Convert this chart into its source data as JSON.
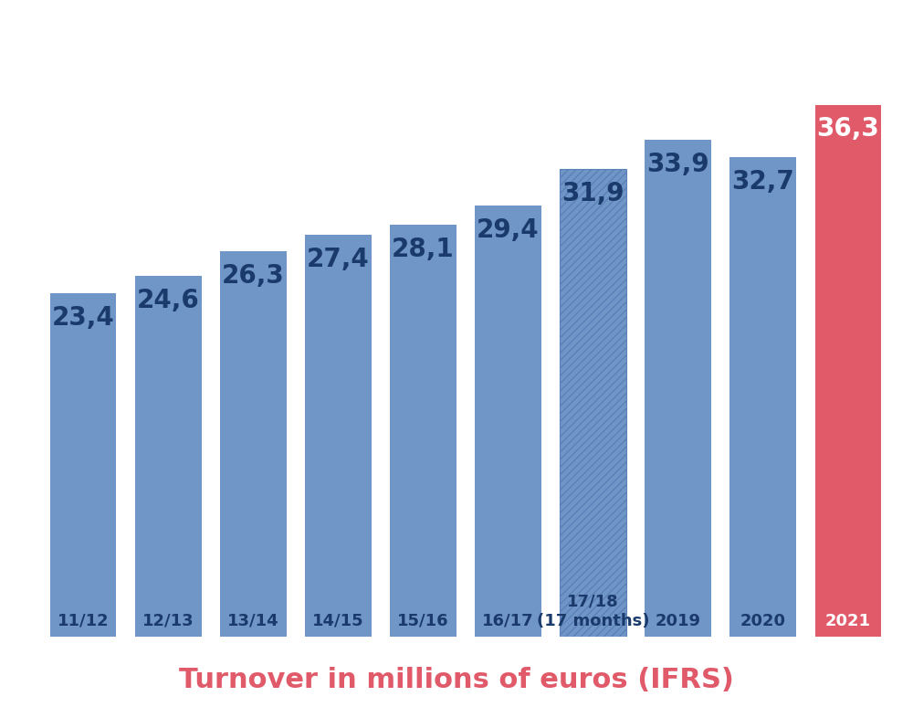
{
  "categories": [
    "11/12",
    "12/13",
    "13/14",
    "14/15",
    "15/16",
    "16/17",
    "17/18\n(17 months)",
    "2019",
    "2020",
    "2021"
  ],
  "values": [
    23.4,
    24.6,
    26.3,
    27.4,
    28.1,
    29.4,
    31.9,
    33.9,
    32.7,
    36.3
  ],
  "bar_colors": [
    "#7096c8",
    "#7096c8",
    "#7096c8",
    "#7096c8",
    "#7096c8",
    "#7096c8",
    "#7096c8",
    "#7096c8",
    "#7096c8",
    "#e05a6a"
  ],
  "hatch_bar_index": 6,
  "label_colors": [
    "#1a3a6b",
    "#1a3a6b",
    "#1a3a6b",
    "#1a3a6b",
    "#1a3a6b",
    "#1a3a6b",
    "#1a3a6b",
    "#1a3a6b",
    "#1a3a6b",
    "#ffffff"
  ],
  "xlabel": "Turnover in millions of euros (IFRS)",
  "xlabel_color": "#e05a6a",
  "xlabel_fontsize": 22,
  "value_label_fontsize": 20,
  "category_label_fontsize": 13,
  "ylim": [
    0,
    42
  ],
  "figure_bg": "#ffffff",
  "plot_bg": "#ffffff",
  "hatch_color": "#5a80b8",
  "bar_width": 0.78
}
